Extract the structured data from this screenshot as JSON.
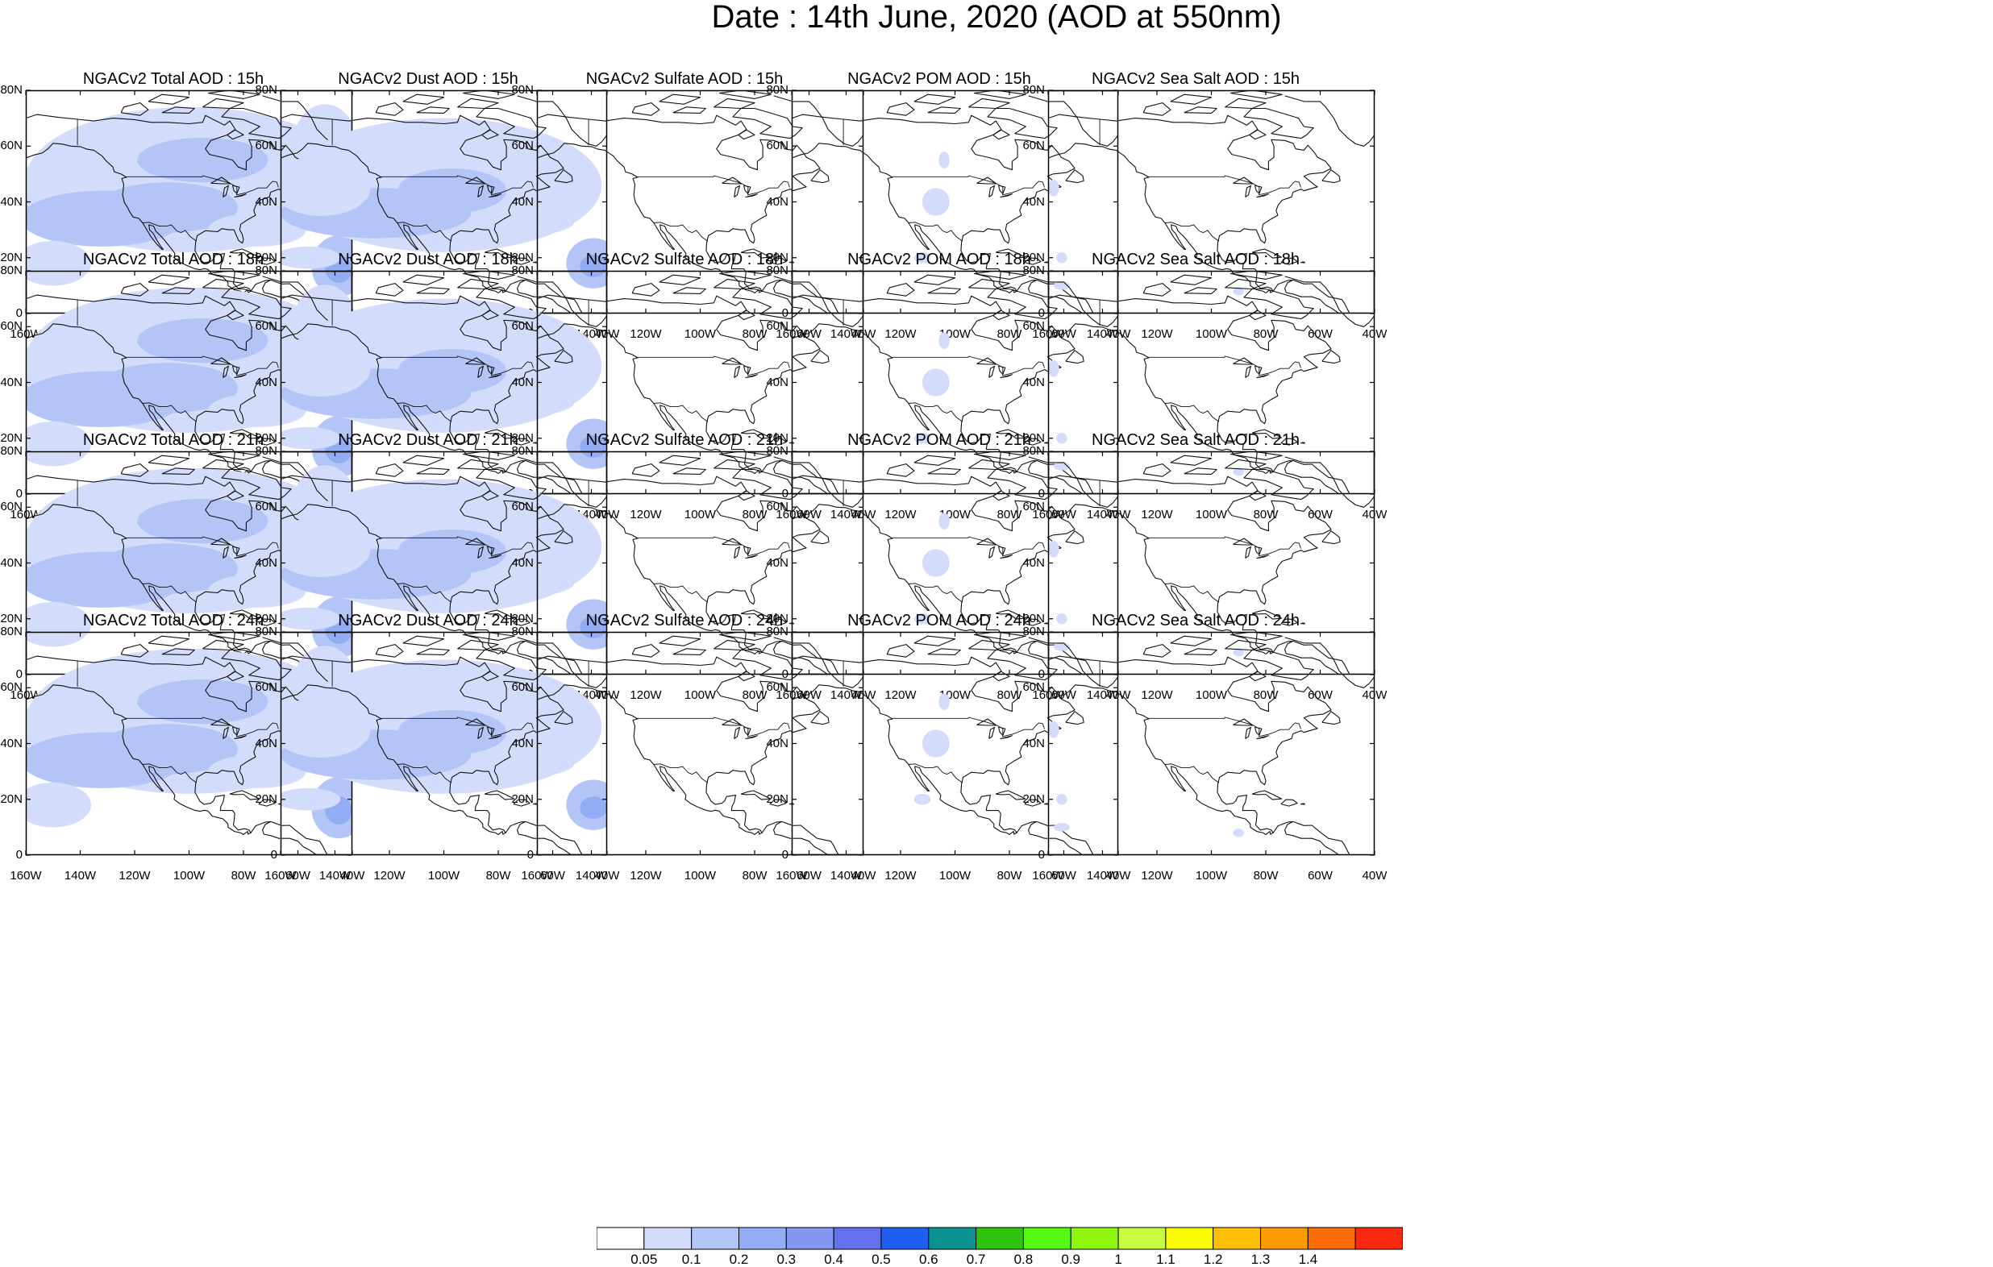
{
  "figure": {
    "title": "Date : 14th June, 2020 (AOD at 550nm)"
  },
  "axes": {
    "lat_ticks": [
      "80N",
      "60N",
      "40N",
      "20N",
      "0"
    ],
    "lon_ticks": [
      "160W",
      "140W",
      "120W",
      "100W",
      "80W",
      "60W",
      "40W"
    ],
    "lat_range_deg": [
      0,
      80
    ],
    "lon_range_deg": [
      -160,
      -40
    ]
  },
  "rows": [
    {
      "hour": "15h",
      "panels": [
        {
          "title": "NGACv2 Total AOD : 15h",
          "species": "total"
        },
        {
          "title": "NGACv2 Dust AOD : 15h",
          "species": "dust"
        },
        {
          "title": "NGACv2 Sulfate AOD : 15h",
          "species": "sulfate"
        },
        {
          "title": "NGACv2 POM AOD : 15h",
          "species": "pom"
        },
        {
          "title": "NGACv2 Sea Salt AOD : 15h",
          "species": "seasalt"
        }
      ]
    },
    {
      "hour": "18h",
      "panels": [
        {
          "title": "NGACv2 Total AOD : 18h",
          "species": "total"
        },
        {
          "title": "NGACv2 Dust AOD : 18h",
          "species": "dust"
        },
        {
          "title": "NGACv2 Sulfate AOD : 18h",
          "species": "sulfate"
        },
        {
          "title": "NGACv2 POM AOD : 18h",
          "species": "pom"
        },
        {
          "title": "NGACv2 Sea Salt AOD : 18h",
          "species": "seasalt"
        }
      ]
    },
    {
      "hour": "21h",
      "panels": [
        {
          "title": "NGACv2 Total AOD : 21h",
          "species": "total"
        },
        {
          "title": "NGACv2 Dust AOD : 21h",
          "species": "dust"
        },
        {
          "title": "NGACv2 Sulfate AOD : 21h",
          "species": "sulfate"
        },
        {
          "title": "NGACv2 POM AOD : 21h",
          "species": "pom"
        },
        {
          "title": "NGACv2 Sea Salt AOD : 21h",
          "species": "seasalt"
        }
      ]
    },
    {
      "hour": "24h",
      "panels": [
        {
          "title": "NGACv2 Total AOD : 24h",
          "species": "total"
        },
        {
          "title": "NGACv2 Dust AOD : 24h",
          "species": "dust"
        },
        {
          "title": "NGACv2 Sulfate AOD : 24h",
          "species": "sulfate"
        },
        {
          "title": "NGACv2 POM AOD : 24h",
          "species": "pom"
        },
        {
          "title": "NGACv2 Sea Salt  AOD : 24h",
          "species": "seasalt"
        }
      ]
    }
  ],
  "colorbar": {
    "labels": [
      "0.05",
      "0.1",
      "0.2",
      "0.3",
      "0.4",
      "0.5",
      "0.6",
      "0.7",
      "0.8",
      "0.9",
      "1",
      "1.1",
      "1.2",
      "1.3",
      "1.4"
    ],
    "colors": [
      "#ffffff",
      "#d3ddfb",
      "#b3c5f7",
      "#93adf4",
      "#8497f1",
      "#6570ee",
      "#1f60f0",
      "#0b9290",
      "#2fc40e",
      "#56f911",
      "#8df60c",
      "#c8fc43",
      "#fbfb05",
      "#fdbf03",
      "#fc9a00",
      "#fc6e05",
      "#fc2911"
    ]
  },
  "style": {
    "aod_colors": {
      "low": "#d3ddfb",
      "mid": "#b3c5f7",
      "high": "#93adf4"
    }
  }
}
